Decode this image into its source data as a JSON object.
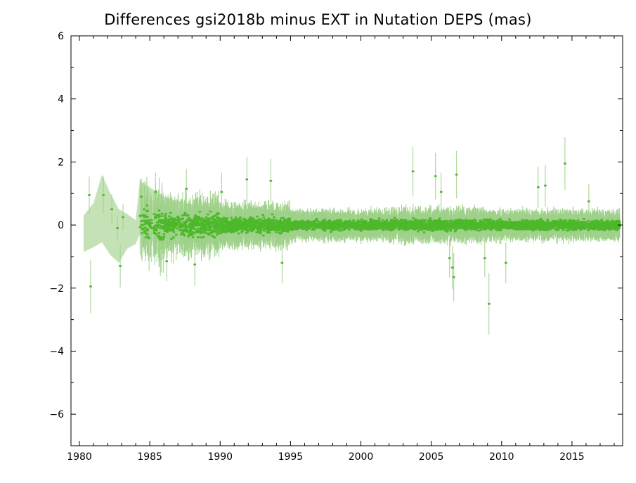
{
  "chart_data": {
    "type": "scatter",
    "title": "Differences gsi2018b minus EXT in Nutation DEPS (mas)",
    "xlabel": "",
    "ylabel": "",
    "xlim": [
      1979.4,
      2018.6
    ],
    "ylim": [
      -7,
      6
    ],
    "xticks": [
      1980,
      1985,
      1990,
      1995,
      2000,
      2005,
      2010,
      2015
    ],
    "xtick_labels": [
      "1980",
      "1985",
      "1990",
      "1995",
      "2000",
      "2005",
      "2010",
      "2015"
    ],
    "yticks": [
      6,
      4,
      2,
      0,
      -2,
      -4,
      -6
    ],
    "ytick_labels": [
      "6",
      "4",
      "2",
      "0",
      "−2",
      "−4",
      "−6"
    ],
    "grid": false,
    "colors": {
      "points": "#4db82a",
      "errorbars": "#9fd18a",
      "band": "#c4e2b6",
      "axes": "#000000"
    },
    "uncertainty_band": [
      [
        1980.3,
        -0.85,
        0.3
      ],
      [
        1981.0,
        -0.7,
        0.7
      ],
      [
        1981.6,
        -0.55,
        1.6
      ],
      [
        1982.2,
        -0.95,
        1.0
      ],
      [
        1982.8,
        -1.2,
        0.5
      ],
      [
        1983.4,
        -0.75,
        0.35
      ],
      [
        1984.0,
        -0.6,
        0.15
      ],
      [
        1984.3,
        -0.3,
        1.4
      ],
      [
        1985.0,
        -0.5,
        1.2
      ],
      [
        1986.0,
        -0.6,
        0.9
      ],
      [
        1987.5,
        -0.6,
        0.7
      ],
      [
        1990.0,
        -0.45,
        0.55
      ],
      [
        1995.0,
        -0.35,
        0.45
      ],
      [
        2000.0,
        -0.25,
        0.35
      ],
      [
        2005.0,
        -0.3,
        0.35
      ],
      [
        2010.0,
        -0.25,
        0.3
      ],
      [
        2015.0,
        -0.3,
        0.35
      ],
      [
        2018.4,
        -0.2,
        0.25
      ]
    ],
    "outliers": [
      {
        "x": 1980.7,
        "y": 0.95
      },
      {
        "x": 1980.8,
        "y": -1.95
      },
      {
        "x": 1981.7,
        "y": 0.95
      },
      {
        "x": 1982.3,
        "y": 0.5
      },
      {
        "x": 1982.7,
        "y": -0.1
      },
      {
        "x": 1982.9,
        "y": -1.3
      },
      {
        "x": 1983.1,
        "y": 0.25
      },
      {
        "x": 1984.4,
        "y": 0.9
      },
      {
        "x": 1985.4,
        "y": 1.05
      },
      {
        "x": 1986.2,
        "y": -1.15
      },
      {
        "x": 1987.6,
        "y": 1.15
      },
      {
        "x": 1988.2,
        "y": -1.25
      },
      {
        "x": 1990.1,
        "y": 1.05
      },
      {
        "x": 1991.9,
        "y": 1.45
      },
      {
        "x": 1993.6,
        "y": 1.4
      },
      {
        "x": 1994.4,
        "y": -1.2
      },
      {
        "x": 2003.7,
        "y": 1.7
      },
      {
        "x": 2005.3,
        "y": 1.55
      },
      {
        "x": 2005.7,
        "y": 1.05
      },
      {
        "x": 2006.3,
        "y": -1.05
      },
      {
        "x": 2006.5,
        "y": -1.35
      },
      {
        "x": 2006.6,
        "y": -1.65
      },
      {
        "x": 2006.8,
        "y": 1.6
      },
      {
        "x": 2008.8,
        "y": -1.05
      },
      {
        "x": 2009.1,
        "y": -2.5
      },
      {
        "x": 2010.3,
        "y": -1.2
      },
      {
        "x": 2012.6,
        "y": 1.2
      },
      {
        "x": 2013.1,
        "y": 1.25
      },
      {
        "x": 2014.5,
        "y": 1.95
      },
      {
        "x": 2016.2,
        "y": 0.75
      }
    ],
    "scatter_density": [
      {
        "from": 1984.3,
        "to": 1986.0,
        "points_per_year": 60,
        "spread": 0.5,
        "errorbar": 0.9
      },
      {
        "from": 1986.0,
        "to": 1990.0,
        "points_per_year": 110,
        "spread": 0.35,
        "errorbar": 0.65
      },
      {
        "from": 1990.0,
        "to": 1995.0,
        "points_per_year": 140,
        "spread": 0.22,
        "errorbar": 0.5
      },
      {
        "from": 1995.0,
        "to": 2002.0,
        "points_per_year": 150,
        "spread": 0.14,
        "errorbar": 0.35
      },
      {
        "from": 2002.0,
        "to": 2009.0,
        "points_per_year": 150,
        "spread": 0.16,
        "errorbar": 0.4
      },
      {
        "from": 2009.0,
        "to": 2018.4,
        "points_per_year": 160,
        "spread": 0.14,
        "errorbar": 0.35
      }
    ]
  }
}
